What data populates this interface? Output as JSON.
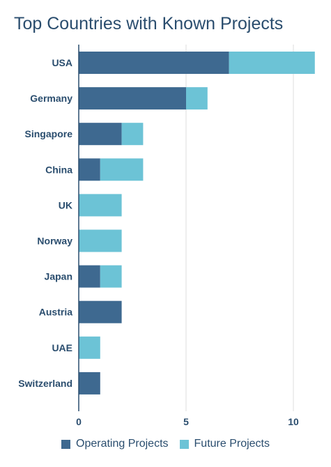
{
  "chart_data": {
    "type": "bar",
    "orientation": "horizontal",
    "stacked": true,
    "title": "Top Countries with Known Projects",
    "xlabel": "",
    "ylabel": "",
    "categories": [
      "USA",
      "Germany",
      "Singapore",
      "China",
      "UK",
      "Norway",
      "Japan",
      "Austria",
      "UAE",
      "Switzerland"
    ],
    "series": [
      {
        "name": "Operating Projects",
        "color": "#3e6990",
        "values": [
          7,
          5,
          2,
          1,
          0,
          0,
          1,
          2,
          0,
          1
        ]
      },
      {
        "name": "Future Projects",
        "color": "#6cc3d6",
        "values": [
          4,
          1,
          1,
          2,
          2,
          2,
          1,
          0,
          1,
          0
        ]
      }
    ],
    "xlim": [
      0,
      11
    ],
    "xticks": [
      0,
      5,
      10
    ],
    "grid": true,
    "legend_position": "bottom"
  }
}
